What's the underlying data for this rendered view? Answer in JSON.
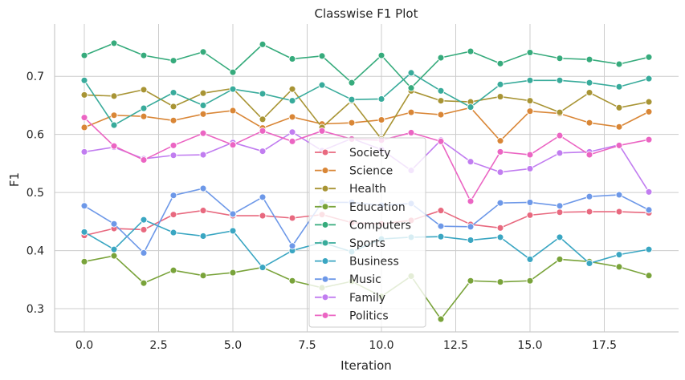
{
  "chart_data": {
    "type": "line",
    "title": "Classwise F1 Plot",
    "xlabel": "Iteration",
    "ylabel": "F1",
    "xlim": [
      -1.0,
      20.0
    ],
    "ylim": [
      0.26,
      0.79
    ],
    "xticks": [
      0.0,
      2.5,
      5.0,
      7.5,
      10.0,
      12.5,
      15.0,
      17.5
    ],
    "xtick_labels": [
      "0.0",
      "2.5",
      "5.0",
      "7.5",
      "10.0",
      "12.5",
      "15.0",
      "17.5"
    ],
    "yticks": [
      0.3,
      0.4,
      0.5,
      0.6,
      0.7
    ],
    "ytick_labels": [
      "0.3",
      "0.4",
      "0.5",
      "0.6",
      "0.7"
    ],
    "grid": true,
    "legend_position": "center-bottom",
    "x": [
      0,
      1,
      2,
      3,
      4,
      5,
      6,
      7,
      8,
      9,
      10,
      11,
      12,
      13,
      14,
      15,
      16,
      17,
      18,
      19
    ],
    "series": [
      {
        "name": "Society",
        "color": "#e8697f",
        "values": [
          0.426,
          0.438,
          0.436,
          0.462,
          0.469,
          0.46,
          0.46,
          0.456,
          0.462,
          0.448,
          0.446,
          0.452,
          0.469,
          0.445,
          0.439,
          0.461,
          0.466,
          0.467,
          0.467,
          0.465
        ]
      },
      {
        "name": "Science",
        "color": "#d98636",
        "values": [
          0.612,
          0.633,
          0.631,
          0.624,
          0.635,
          0.641,
          0.611,
          0.63,
          0.618,
          0.62,
          0.625,
          0.638,
          0.634,
          0.646,
          0.589,
          0.64,
          0.636,
          0.62,
          0.613,
          0.639
        ]
      },
      {
        "name": "Health",
        "color": "#a89434",
        "values": [
          0.668,
          0.666,
          0.677,
          0.648,
          0.671,
          0.679,
          0.626,
          0.678,
          0.612,
          0.658,
          0.592,
          0.675,
          0.658,
          0.656,
          0.665,
          0.658,
          0.638,
          0.672,
          0.646,
          0.656
        ]
      },
      {
        "name": "Education",
        "color": "#79a33a",
        "values": [
          0.381,
          0.391,
          0.344,
          0.366,
          0.357,
          0.362,
          0.371,
          0.348,
          0.336,
          0.347,
          0.321,
          0.356,
          0.282,
          0.348,
          0.346,
          0.348,
          0.385,
          0.381,
          0.372,
          0.357
        ]
      },
      {
        "name": "Computers",
        "color": "#36ab7c",
        "values": [
          0.736,
          0.757,
          0.736,
          0.727,
          0.742,
          0.707,
          0.755,
          0.73,
          0.735,
          0.689,
          0.736,
          0.68,
          0.732,
          0.743,
          0.722,
          0.741,
          0.731,
          0.729,
          0.721,
          0.733
        ]
      },
      {
        "name": "Sports",
        "color": "#38ab9b",
        "values": [
          0.693,
          0.616,
          0.645,
          0.672,
          0.65,
          0.678,
          0.67,
          0.658,
          0.685,
          0.66,
          0.661,
          0.706,
          0.675,
          0.647,
          0.686,
          0.693,
          0.693,
          0.689,
          0.682,
          0.696
        ]
      },
      {
        "name": "Business",
        "color": "#3aa6c2",
        "values": [
          0.432,
          0.402,
          0.453,
          0.431,
          0.425,
          0.434,
          0.371,
          0.4,
          0.414,
          0.398,
          0.42,
          0.423,
          0.424,
          0.418,
          0.423,
          0.385,
          0.423,
          0.378,
          0.393,
          0.402
        ]
      },
      {
        "name": "Music",
        "color": "#6d98e8",
        "values": [
          0.477,
          0.446,
          0.396,
          0.495,
          0.507,
          0.463,
          0.492,
          0.408,
          0.483,
          0.483,
          0.478,
          0.481,
          0.442,
          0.441,
          0.482,
          0.483,
          0.477,
          0.493,
          0.496,
          0.47
        ]
      },
      {
        "name": "Family",
        "color": "#c17df0",
        "values": [
          0.57,
          0.578,
          0.558,
          0.564,
          0.565,
          0.586,
          0.571,
          0.604,
          0.572,
          0.593,
          0.574,
          0.538,
          0.59,
          0.553,
          0.535,
          0.541,
          0.568,
          0.57,
          0.582,
          0.501
        ]
      },
      {
        "name": "Politics",
        "color": "#eb65c3",
        "values": [
          0.629,
          0.58,
          0.556,
          0.581,
          0.602,
          0.582,
          0.606,
          0.588,
          0.606,
          0.592,
          0.59,
          0.603,
          0.588,
          0.485,
          0.57,
          0.565,
          0.598,
          0.565,
          0.581,
          0.591
        ]
      }
    ]
  }
}
